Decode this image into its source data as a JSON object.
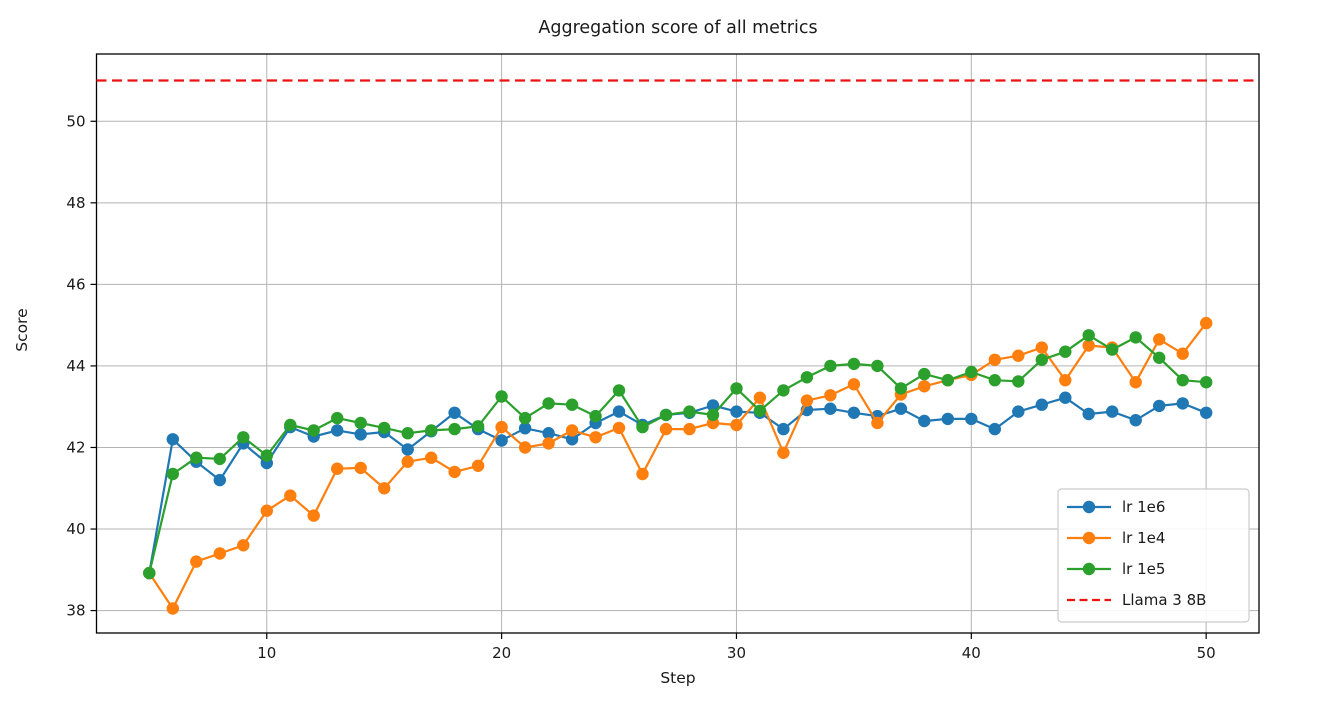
{
  "figure": {
    "background": "#ffffff"
  },
  "chart_data": {
    "type": "line",
    "title": "Aggregation score of all metrics",
    "xlabel": "Step",
    "ylabel": "Score",
    "xlim": [
      2.75,
      52.25
    ],
    "ylim": [
      37.45,
      51.65
    ],
    "x_ticks": [
      10,
      20,
      30,
      40,
      50
    ],
    "y_ticks": [
      38,
      40,
      42,
      44,
      46,
      48,
      50
    ],
    "grid": true,
    "grid_color": "#b3b3b3",
    "legend_position": "lower right",
    "x": [
      5,
      6,
      7,
      8,
      9,
      10,
      11,
      12,
      13,
      14,
      15,
      16,
      17,
      18,
      19,
      20,
      21,
      22,
      23,
      24,
      25,
      26,
      27,
      28,
      29,
      30,
      31,
      32,
      33,
      34,
      35,
      36,
      37,
      38,
      39,
      40,
      41,
      42,
      43,
      44,
      45,
      46,
      47,
      48,
      49,
      50
    ],
    "series": [
      {
        "name": "lr 1e6",
        "color": "#1f77b4",
        "marker": "circle",
        "values": [
          38.92,
          42.2,
          41.65,
          41.2,
          42.1,
          41.62,
          42.5,
          42.27,
          42.42,
          42.32,
          42.38,
          41.95,
          42.4,
          42.85,
          42.45,
          42.17,
          42.47,
          42.35,
          42.2,
          42.6,
          42.88,
          42.55,
          42.8,
          42.85,
          43.03,
          42.88,
          42.85,
          42.45,
          42.92,
          42.95,
          42.85,
          42.77,
          42.95,
          42.65,
          42.7,
          42.7,
          42.45,
          42.88,
          43.05,
          43.22,
          42.82,
          42.88,
          42.67,
          43.02,
          43.08,
          42.85
        ]
      },
      {
        "name": "lr 1e4",
        "color": "#ff7f0e",
        "marker": "circle",
        "values": [
          38.92,
          38.05,
          39.2,
          39.4,
          39.6,
          40.45,
          40.82,
          40.33,
          41.48,
          41.5,
          41.0,
          41.65,
          41.75,
          41.4,
          41.55,
          42.5,
          42.0,
          42.1,
          42.42,
          42.25,
          42.48,
          41.35,
          42.45,
          42.45,
          42.6,
          42.55,
          43.22,
          41.87,
          43.15,
          43.28,
          43.55,
          42.6,
          43.3,
          43.5,
          43.65,
          43.78,
          44.15,
          44.25,
          44.45,
          43.65,
          44.5,
          44.45,
          43.6,
          44.65,
          44.3,
          45.05
        ]
      },
      {
        "name": "lr 1e5",
        "color": "#2ca02c",
        "marker": "circle",
        "values": [
          38.92,
          41.35,
          41.75,
          41.72,
          42.25,
          41.8,
          42.55,
          42.42,
          42.72,
          42.6,
          42.48,
          42.35,
          42.42,
          42.45,
          42.52,
          43.25,
          42.72,
          43.08,
          43.05,
          42.77,
          43.4,
          42.5,
          42.8,
          42.88,
          42.8,
          43.45,
          42.9,
          43.4,
          43.72,
          44.0,
          44.05,
          44.0,
          43.45,
          43.8,
          43.65,
          43.85,
          43.65,
          43.62,
          44.15,
          44.35,
          44.75,
          44.4,
          44.7,
          44.2,
          43.65,
          43.6
        ]
      }
    ],
    "baseline": {
      "name": "Llama 3 8B",
      "value": 51.0,
      "color": "#ee1111",
      "style": "dashed"
    },
    "legend_entries": [
      "lr 1e6",
      "lr 1e4",
      "lr 1e5",
      "Llama 3 8B"
    ]
  }
}
